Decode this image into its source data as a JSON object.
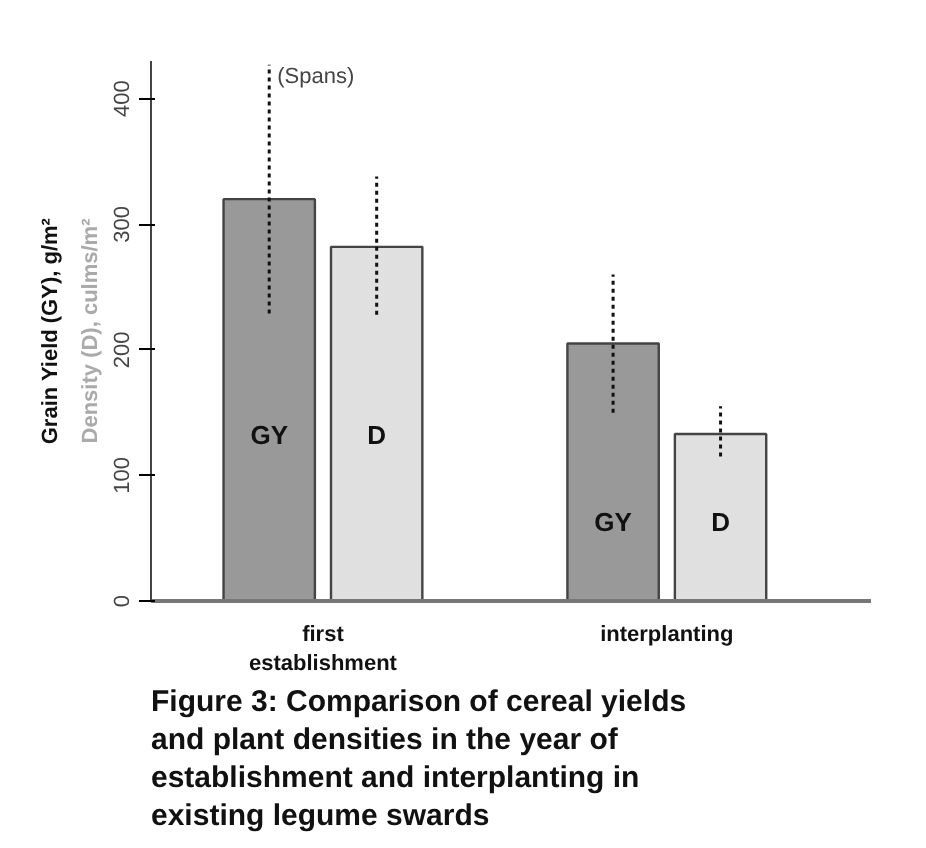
{
  "chart_data": {
    "type": "bar",
    "title": "Figure 3: Comparison of cereal yields and plant densities in the year of establishment and interplanting in existing legume swards",
    "ylabel": "Grain Yield (GY), g/m²",
    "y2label": "Density (D), culms/m²",
    "categories": [
      "first establishment",
      "interplanting"
    ],
    "series": [
      {
        "name": "GY",
        "color": "#999999",
        "values": [
          320,
          205
        ],
        "errors": [
          [
            229,
            427
          ],
          [
            150,
            260
          ]
        ]
      },
      {
        "name": "D",
        "color": "#e0e0e0",
        "values": [
          282,
          133
        ],
        "errors": [
          [
            228,
            338
          ],
          [
            115,
            155
          ]
        ]
      }
    ],
    "ylim": [
      0,
      430
    ],
    "yticks": [
      0,
      100,
      200,
      300,
      400
    ],
    "grid": false,
    "annotations": [
      "(Spans)"
    ]
  }
}
